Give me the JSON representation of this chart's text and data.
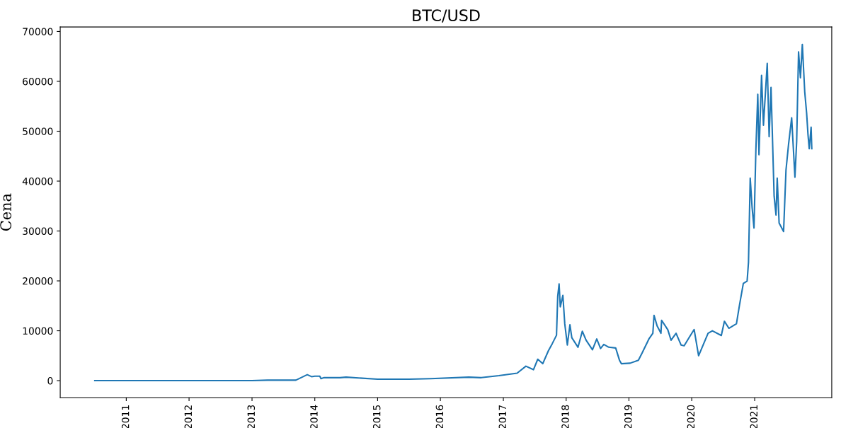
{
  "chart_data": {
    "type": "line",
    "title": "BTC/USD",
    "ylabel": "Cena",
    "x": [
      "2010-07-02",
      "2011-07-02",
      "2012-07-02",
      "2013-01-01",
      "2013-04-02",
      "2013-09-13",
      "2013-11-18",
      "2013-12-13",
      "2014-01-01",
      "2014-01-30",
      "2014-02-06",
      "2014-02-24",
      "2014-05-27",
      "2014-07-02",
      "2015-01-01",
      "2015-07-02",
      "2015-11-06",
      "2016-06-14",
      "2016-08-26",
      "2016-12-06",
      "2017-03-22",
      "2017-05-12",
      "2017-06-25",
      "2017-07-20",
      "2017-08-18",
      "2017-09-20",
      "2017-10-12",
      "2017-11-06",
      "2017-11-13",
      "2017-11-21",
      "2017-11-28",
      "2017-12-13",
      "2017-12-24",
      "2018-01-08",
      "2018-01-23",
      "2018-02-03",
      "2018-03-11",
      "2018-04-05",
      "2018-04-27",
      "2018-06-03",
      "2018-06-28",
      "2018-07-20",
      "2018-08-08",
      "2018-09-06",
      "2018-10-16",
      "2018-11-07",
      "2018-11-18",
      "2019-01-08",
      "2019-02-25",
      "2019-03-18",
      "2019-04-27",
      "2019-05-20",
      "2019-05-27",
      "2019-06-14",
      "2019-07-06",
      "2019-07-10",
      "2019-08-15",
      "2019-09-03",
      "2019-10-02",
      "2019-10-31",
      "2019-11-18",
      "2019-12-16",
      "2020-01-15",
      "2020-02-10",
      "2020-04-05",
      "2020-04-30",
      "2020-06-21",
      "2020-07-09",
      "2020-08-04",
      "2020-09-17",
      "2020-10-05",
      "2020-10-27",
      "2020-11-18",
      "2020-11-26",
      "2020-12-06",
      "2020-12-17",
      "2020-12-28",
      "2021-01-08",
      "2021-01-19",
      "2021-01-26",
      "2021-02-10",
      "2021-02-21",
      "2021-03-15",
      "2021-03-26",
      "2021-04-06",
      "2021-04-24",
      "2021-05-05",
      "2021-05-12",
      "2021-05-23",
      "2021-06-18",
      "2021-07-02",
      "2021-07-17",
      "2021-08-04",
      "2021-08-23",
      "2021-09-02",
      "2021-09-13",
      "2021-09-24",
      "2021-10-05",
      "2021-10-19",
      "2021-10-30",
      "2021-11-07",
      "2021-11-14",
      "2021-11-25",
      "2021-11-29"
    ],
    "series": [
      {
        "color": "#1f77b4",
        "values": [
          0,
          0,
          0,
          0,
          100,
          100,
          1200,
          800,
          900,
          900,
          400,
          600,
          600,
          700,
          300,
          300,
          400,
          700,
          600,
          1000,
          1500,
          2900,
          2200,
          4300,
          3400,
          6000,
          7400,
          9100,
          16900,
          19400,
          14800,
          17100,
          11400,
          7150,
          11200,
          8600,
          6700,
          9900,
          8100,
          6200,
          8350,
          6450,
          7250,
          6700,
          6550,
          4100,
          3400,
          3500,
          4100,
          5500,
          8350,
          9500,
          13100,
          10950,
          9500,
          12100,
          10200,
          8100,
          9500,
          7150,
          7000,
          8600,
          10250,
          5000,
          9500,
          10000,
          9050,
          11900,
          10500,
          11400,
          15200,
          19500,
          19950,
          23700,
          40600,
          34700,
          30600,
          46300,
          57400,
          45300,
          61200,
          51200,
          63600,
          48900,
          58800,
          37000,
          33200,
          40600,
          31600,
          29900,
          42200,
          47400,
          52700,
          40800,
          47900,
          65900,
          60700,
          67400,
          57900,
          53600,
          49300,
          46500,
          50800,
          46500
        ]
      }
    ],
    "xlim": [
      "2009-12-13",
      "2022-03-25"
    ],
    "xticks": [
      "2011",
      "2012",
      "2013",
      "2014",
      "2015",
      "2016",
      "2017",
      "2018",
      "2019",
      "2020",
      "2021"
    ],
    "ylim": [
      -3400,
      70900
    ],
    "yticks": [
      0,
      10000,
      20000,
      30000,
      40000,
      50000,
      60000,
      70000
    ],
    "grid": false
  }
}
